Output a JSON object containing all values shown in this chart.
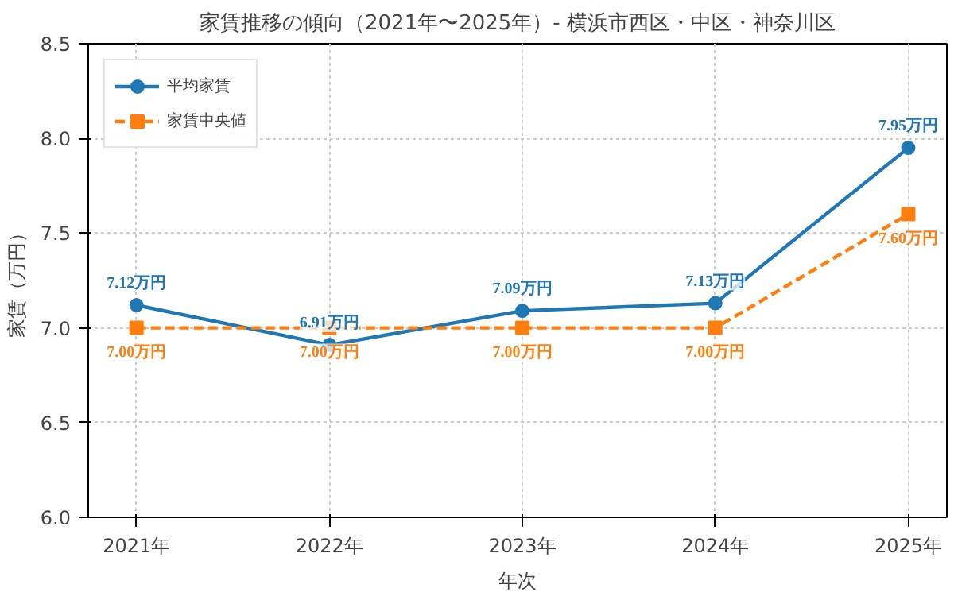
{
  "chart_data": {
    "type": "line",
    "title": "家賃推移の傾向（2021年〜2025年）- 横浜市西区・中区・神奈川区",
    "xlabel": "年次",
    "ylabel": "家賃（万円）",
    "categories": [
      "2021年",
      "2022年",
      "2023年",
      "2024年",
      "2025年"
    ],
    "series": [
      {
        "name": "平均家賃",
        "color": "#1f77b4",
        "values": [
          7.12,
          6.91,
          7.09,
          7.13,
          7.95
        ],
        "marker": "circle",
        "line_style": "solid",
        "value_labels": [
          "7.12万円",
          "6.91万円",
          "7.09万円",
          "7.13万円",
          "7.95万円"
        ]
      },
      {
        "name": "家賃中央値",
        "color": "#ff7f0e",
        "values": [
          7.0,
          7.0,
          7.0,
          7.0,
          7.6
        ],
        "marker": "square",
        "line_style": "dashed",
        "value_labels": [
          "7.00万円",
          "7.00万円",
          "7.00万円",
          "7.00万円",
          "7.60万円"
        ]
      }
    ],
    "ylim": [
      6.0,
      8.5
    ],
    "yticks": [
      {
        "value": 6.0,
        "label": "6.0"
      },
      {
        "value": 6.5,
        "label": "6.5"
      },
      {
        "value": 7.0,
        "label": "7.0"
      },
      {
        "value": 7.5,
        "label": "7.5"
      },
      {
        "value": 8.0,
        "label": "8.0"
      },
      {
        "value": 8.5,
        "label": "8.5"
      }
    ],
    "grid": true,
    "legend": "top left"
  }
}
